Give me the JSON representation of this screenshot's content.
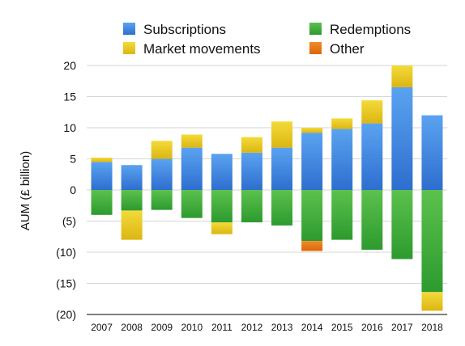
{
  "chart_data": {
    "type": "bar",
    "stacked": true,
    "title": "",
    "xlabel": "",
    "ylabel": "AUM (£ billion)",
    "ylim": [
      -20,
      20
    ],
    "yticks": [
      20,
      15,
      10,
      5,
      0,
      -5,
      -10,
      -15,
      -20
    ],
    "ytick_labels": [
      "20",
      "15",
      "10",
      "5",
      "0",
      "(5)",
      "(10)",
      "(15)",
      "(20)"
    ],
    "grid": "horizontal",
    "legend_position": "top",
    "categories": [
      "2007",
      "2008",
      "2009",
      "2010",
      "2011",
      "2012",
      "2013",
      "2014",
      "2015",
      "2016",
      "2017",
      "2018"
    ],
    "series": [
      {
        "name": "Subscriptions",
        "color": "#3a7fdc",
        "values": [
          4.5,
          4.0,
          5.0,
          6.8,
          5.8,
          6.0,
          6.8,
          9.2,
          9.8,
          10.7,
          16.5,
          12.0
        ]
      },
      {
        "name": "Market movements",
        "color": "#e6c51a",
        "values": [
          0.7,
          -4.7,
          2.9,
          2.1,
          -1.9,
          2.5,
          4.2,
          0.8,
          1.7,
          3.7,
          3.5,
          -3.0
        ]
      },
      {
        "name": "Redemptions",
        "color": "#3daa3a",
        "values": [
          -4.0,
          -3.3,
          -3.2,
          -4.5,
          -5.2,
          -5.2,
          -5.7,
          -8.2,
          -8.0,
          -9.6,
          -11.1,
          -16.4
        ]
      },
      {
        "name": "Other",
        "color": "#e87412",
        "values": [
          0,
          0,
          0,
          0,
          0,
          0,
          0,
          -1.6,
          0,
          0,
          0,
          0
        ]
      }
    ],
    "legend": [
      {
        "name": "Subscriptions",
        "color": "#3a7fdc"
      },
      {
        "name": "Redemptions",
        "color": "#3daa3a"
      },
      {
        "name": "Market movements",
        "color": "#e6c51a"
      },
      {
        "name": "Other",
        "color": "#e87412"
      }
    ]
  }
}
